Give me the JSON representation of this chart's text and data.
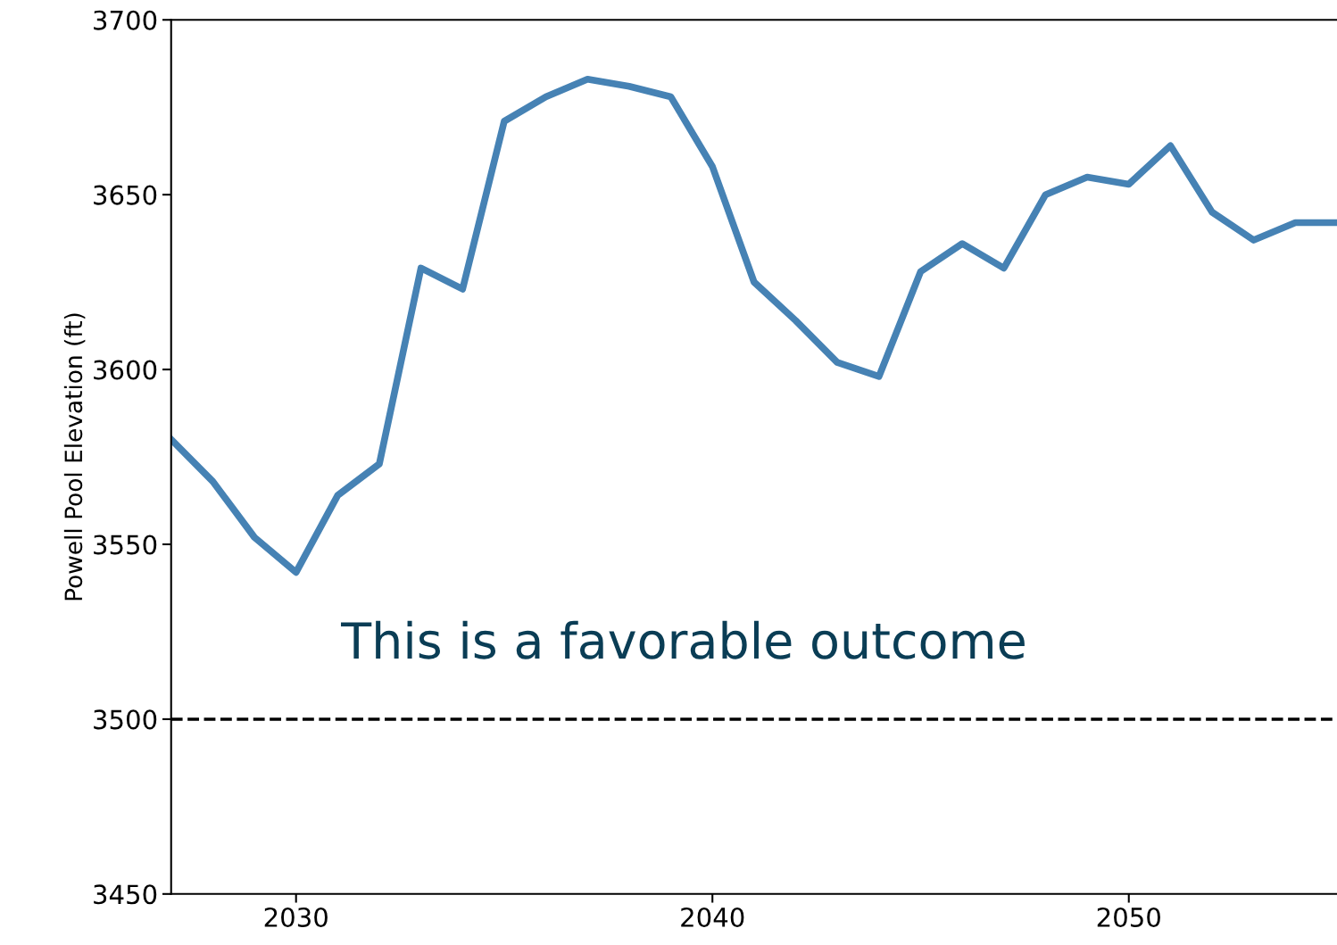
{
  "chart_data": {
    "type": "line",
    "ylabel": "Powell Pool Elevation (ft)",
    "x": [
      2027,
      2028,
      2029,
      2030,
      2031,
      2032,
      2033,
      2034,
      2035,
      2036,
      2037,
      2038,
      2039,
      2040,
      2041,
      2042,
      2043,
      2044,
      2045,
      2046,
      2047,
      2048,
      2049,
      2050,
      2051,
      2052,
      2053,
      2054,
      2055
    ],
    "series": [
      {
        "color": "#4682b4",
        "values": [
          3580,
          3568,
          3552,
          3542,
          3564,
          3573,
          3629,
          3623,
          3671,
          3678,
          3683,
          3681,
          3678,
          3658,
          3625,
          3614,
          3602,
          3598,
          3628,
          3636,
          3629,
          3650,
          3655,
          3653,
          3664,
          3645,
          3637,
          3642,
          3642
        ]
      }
    ],
    "xlim": [
      2027,
      2055
    ],
    "xticks": [
      2030,
      2040,
      2050
    ],
    "ylim": [
      3450,
      3700
    ],
    "yticks": [
      3450,
      3500,
      3550,
      3600,
      3650,
      3700
    ],
    "ref_lines": [
      {
        "axis": "y",
        "value": 3500,
        "color": "#000000",
        "line_style": "dashed"
      }
    ],
    "annotations": [
      "This is a favorable outcome"
    ],
    "grid": false,
    "legend": false,
    "marker": "none",
    "line_style": "solid"
  }
}
